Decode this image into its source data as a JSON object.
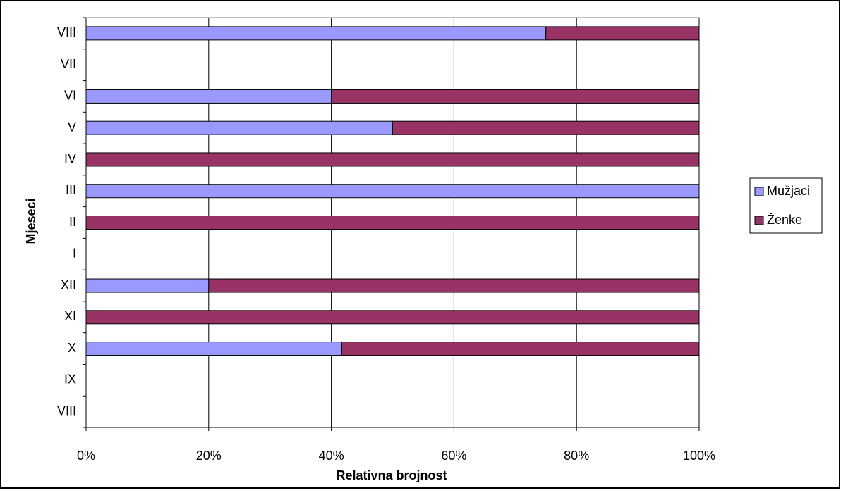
{
  "chart_data": {
    "type": "stacked-bar-horizontal",
    "x_label": "Relativna brojnost",
    "y_label": "Mjeseci",
    "categories": [
      "VIII",
      "IX",
      "X",
      "XI",
      "XII",
      "I",
      "II",
      "III",
      "IV",
      "V",
      "VI",
      "VII",
      "VIII"
    ],
    "series": [
      {
        "name": "Mužjaci",
        "color": "#9999ff",
        "values": [
          null,
          null,
          41.7,
          0,
          20,
          null,
          0,
          100,
          0,
          50,
          40,
          null,
          75
        ]
      },
      {
        "name": "Ženke",
        "color": "#993366",
        "values": [
          null,
          null,
          58.3,
          100,
          80,
          null,
          100,
          0,
          100,
          50,
          60,
          null,
          25
        ]
      }
    ],
    "xlim": [
      0,
      100
    ],
    "xticks": [
      {
        "value": 0,
        "label": "0%"
      },
      {
        "value": 20,
        "label": "20%"
      },
      {
        "value": 40,
        "label": "40%"
      },
      {
        "value": 60,
        "label": "60%"
      },
      {
        "value": 80,
        "label": "80%"
      },
      {
        "value": 100,
        "label": "100%"
      }
    ],
    "grid": true,
    "legend": "right"
  }
}
